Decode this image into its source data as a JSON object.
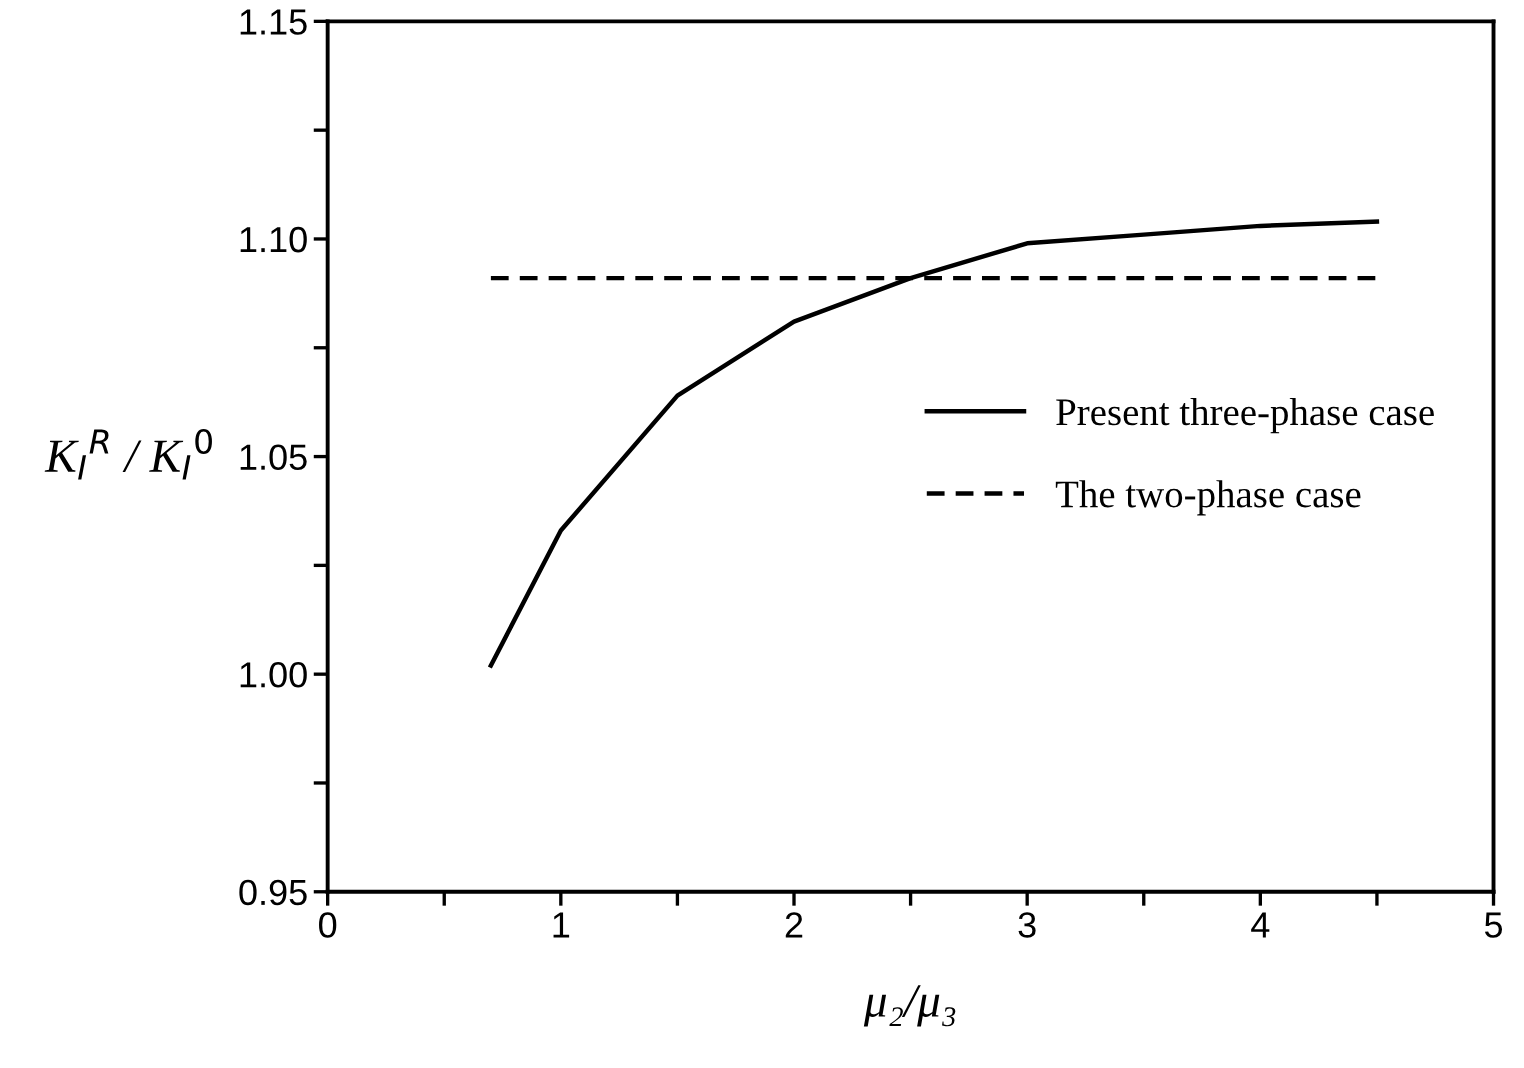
{
  "chart_data": {
    "type": "line",
    "xlabel": "μ₂/μ₃",
    "ylabel": "K$_{I}$$^{R}$ / K$_{I}$$^{0}$",
    "series": [
      {
        "name": "Present three-phase case",
        "color": "#000000",
        "line_style": "solid",
        "x": [
          0.7,
          1,
          1.5,
          2,
          2.5,
          3,
          3.5,
          4,
          4.5
        ],
        "values": [
          1.002,
          1.033,
          1.064,
          1.081,
          1.091,
          1.099,
          1.101,
          1.103,
          1.104
        ]
      },
      {
        "name": "The two-phase case",
        "color": "#000000",
        "line_style": "dashed",
        "x": [
          0.7,
          4.5
        ],
        "values": [
          1.091,
          1.091
        ]
      }
    ],
    "xlim": [
      0,
      5
    ],
    "xticks": [
      0,
      {
        "value": 0.5,
        "label": null
      },
      1,
      {
        "value": 1.5,
        "label": null
      },
      2,
      {
        "value": 2.5,
        "label": null
      },
      3,
      {
        "value": 3.5,
        "label": null
      },
      4,
      {
        "value": 4.5,
        "label": null
      },
      5
    ],
    "ylim": [
      0.95,
      1.15
    ],
    "yticks": [
      {
        "value": 0.95,
        "label": "0.95"
      },
      {
        "value": 0.975,
        "label": null
      },
      {
        "value": 1.0,
        "label": "1.00"
      },
      {
        "value": 1.025,
        "label": null
      },
      {
        "value": 1.05,
        "label": "1.05"
      },
      {
        "value": 1.075,
        "label": null
      },
      {
        "value": 1.1,
        "label": "1.10"
      },
      {
        "value": 1.125,
        "label": null
      },
      {
        "value": 1.15,
        "label": "1.15"
      }
    ],
    "grid": false,
    "legend": "center right",
    "marker": "none"
  }
}
